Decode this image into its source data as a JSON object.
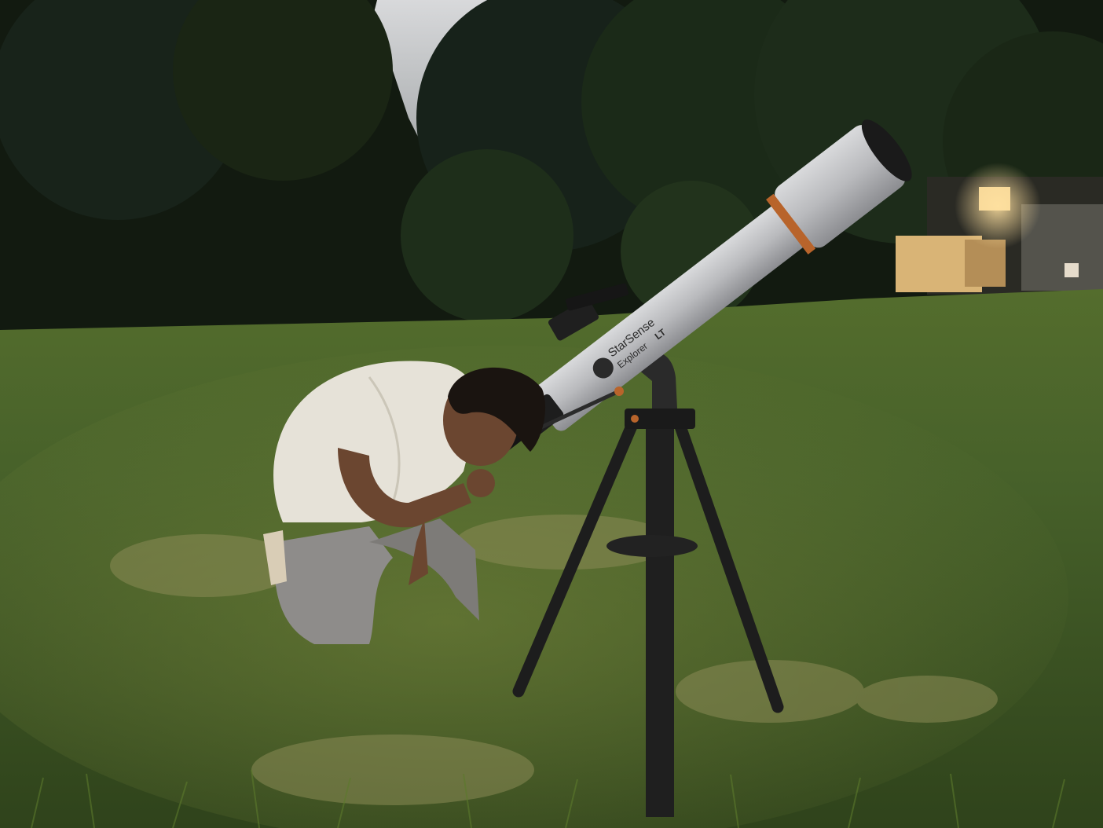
{
  "photo": {
    "telescope": {
      "brand_mark": "StarSense",
      "model_mark": "Explorer",
      "model_suffix": "LT"
    },
    "colors": {
      "sky": "#c9cccd",
      "treeline": "#141c12",
      "grass": "#3f5a22",
      "grass_light": "#6c7f33",
      "telescope_tube": "#bfc0c2",
      "accent_ring": "#b8642b",
      "shirt": "#e6e2d8",
      "pants": "#8e8c8a",
      "skin": "#6b4630",
      "hair": "#1a1410",
      "tripod": "#1d1d1d",
      "window_light": "#f2d08a"
    }
  }
}
